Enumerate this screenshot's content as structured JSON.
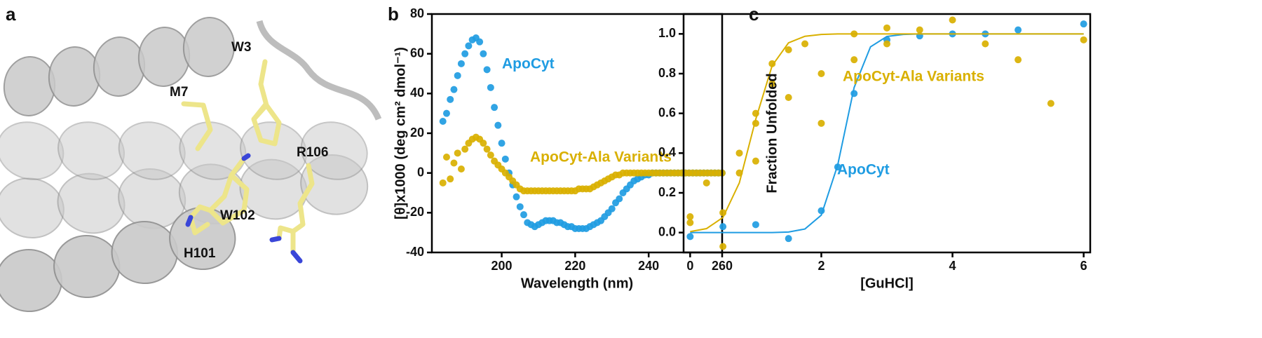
{
  "structure": {
    "panel": "a",
    "residues": [
      "W3",
      "M7",
      "R106",
      "W102",
      "H101"
    ]
  },
  "chart_data": [
    {
      "type": "scatter",
      "panel": "b",
      "x_label": "Wavelength (nm)",
      "y_label": "[θ]x1000 (deg cm² dmol⁻¹)",
      "xlim": [
        181,
        260
      ],
      "ylim": [
        -40,
        80
      ],
      "xticks": [
        200,
        220,
        240,
        260
      ],
      "yticks": [
        -40,
        -20,
        0,
        20,
        40,
        60,
        80
      ],
      "series": [
        {
          "name": "ApoCyt",
          "color": "#1f9ce2",
          "x": [
            184,
            185,
            186,
            187,
            188,
            189,
            190,
            191,
            192,
            193,
            194,
            195,
            196,
            197,
            198,
            199,
            200,
            201,
            202,
            203,
            204,
            205,
            206,
            207,
            208,
            209,
            210,
            211,
            212,
            213,
            214,
            215,
            216,
            217,
            218,
            219,
            220,
            221,
            222,
            223,
            224,
            225,
            226,
            227,
            228,
            229,
            230,
            231,
            232,
            233,
            234,
            235,
            236,
            237,
            238,
            239,
            240,
            241,
            242,
            243,
            244,
            245,
            246,
            247,
            248,
            249,
            250,
            251,
            252,
            253,
            254,
            255,
            256,
            257,
            258,
            259,
            260
          ],
          "values": [
            26,
            30,
            37,
            42,
            49,
            55,
            60,
            64,
            67,
            68,
            66,
            60,
            52,
            43,
            33,
            24,
            15,
            7,
            0,
            -6,
            -12,
            -17,
            -21,
            -25,
            -26,
            -27,
            -26,
            -25,
            -24,
            -24,
            -24,
            -25,
            -25,
            -26,
            -27,
            -27,
            -28,
            -28,
            -28,
            -28,
            -27,
            -26,
            -25,
            -24,
            -22,
            -20,
            -18,
            -15,
            -13,
            -10,
            -8,
            -6,
            -4,
            -3,
            -2,
            -1,
            -1,
            0,
            0,
            0,
            0,
            0,
            0,
            0,
            0,
            0,
            0,
            0,
            0,
            0,
            0,
            0,
            0,
            0,
            0,
            0,
            0
          ]
        },
        {
          "name": "ApoCyt-Ala Variants",
          "color": "#d9b000",
          "x": [
            184,
            185,
            186,
            187,
            188,
            189,
            190,
            191,
            192,
            193,
            194,
            195,
            196,
            197,
            198,
            199,
            200,
            201,
            202,
            203,
            204,
            205,
            206,
            207,
            208,
            209,
            210,
            211,
            212,
            213,
            214,
            215,
            216,
            217,
            218,
            219,
            220,
            221,
            222,
            223,
            224,
            225,
            226,
            227,
            228,
            229,
            230,
            231,
            232,
            233,
            234,
            235,
            236,
            237,
            238,
            239,
            240,
            241,
            242,
            243,
            244,
            245,
            246,
            247,
            248,
            249,
            250,
            251,
            252,
            253,
            254,
            255,
            256,
            257,
            258,
            259,
            260
          ],
          "values": [
            -5,
            8,
            -3,
            5,
            10,
            2,
            12,
            15,
            17,
            18,
            17,
            15,
            12,
            9,
            6,
            4,
            2,
            0,
            -2,
            -4,
            -6,
            -8,
            -9,
            -9,
            -9,
            -9,
            -9,
            -9,
            -9,
            -9,
            -9,
            -9,
            -9,
            -9,
            -9,
            -9,
            -9,
            -8,
            -8,
            -8,
            -8,
            -7,
            -6,
            -5,
            -4,
            -3,
            -2,
            -1,
            -1,
            0,
            0,
            0,
            0,
            0,
            0,
            0,
            0,
            0,
            0,
            0,
            0,
            0,
            0,
            0,
            0,
            0,
            0,
            0,
            0,
            0,
            0,
            0,
            0,
            0,
            0,
            0,
            0
          ]
        }
      ]
    },
    {
      "type": "scatter",
      "panel": "c",
      "x_label": "[GuHCl]",
      "y_label": "Fraction Unfolded",
      "xlim": [
        -0.1,
        6.1
      ],
      "ylim": [
        -0.1,
        1.1
      ],
      "xticks": [
        0,
        2,
        4,
        6
      ],
      "yticks": [
        {
          "value": 0,
          "label": "0.0"
        },
        {
          "value": 0.2,
          "label": "0.2"
        },
        {
          "value": 0.4,
          "label": "0.4"
        },
        {
          "value": 0.6,
          "label": "0.6"
        },
        {
          "value": 0.8,
          "label": "0.8"
        },
        {
          "value": 1,
          "label": "1.0"
        }
      ],
      "series": [
        {
          "name": "ApoCyt",
          "color": "#1f9ce2",
          "x": [
            0,
            0.5,
            1,
            1.5,
            2,
            2.25,
            2.5,
            3,
            3.5,
            4,
            4.5,
            5,
            6
          ],
          "values": [
            -0.02,
            0.03,
            0.04,
            -0.03,
            0.11,
            0.33,
            0.7,
            0.97,
            0.99,
            1,
            1,
            1.02,
            1.05
          ],
          "fit": {
            "x": [
              0,
              0.25,
              0.5,
              0.75,
              1,
              1.25,
              1.5,
              1.75,
              2,
              2.25,
              2.5,
              2.75,
              3,
              3.25,
              3.5,
              3.75,
              4,
              4.25,
              4.5,
              4.75,
              5,
              5.25,
              5.5,
              5.75,
              6
            ],
            "values": [
              0,
              0,
              0,
              0,
              0,
              0,
              0.003,
              0.018,
              0.088,
              0.34,
              0.73,
              0.935,
              0.987,
              0.997,
              1,
              1,
              1,
              1,
              1,
              1,
              1,
              1,
              1,
              1,
              1
            ]
          }
        },
        {
          "name": "ApoCyt-Ala Variants",
          "color": "#d9b000",
          "x": [
            0,
            0,
            0.25,
            0.5,
            0.5,
            0.75,
            0.75,
            1,
            1,
            1,
            1.25,
            1.25,
            1.5,
            1.5,
            1.75,
            2,
            2,
            2.5,
            2.5,
            3,
            3,
            3.5,
            4,
            4.5,
            5,
            5.5,
            6
          ],
          "values": [
            0.05,
            0.08,
            0.25,
            -0.07,
            0.1,
            0.3,
            0.4,
            0.55,
            0.6,
            0.36,
            0.75,
            0.85,
            0.92,
            0.68,
            0.95,
            0.8,
            0.55,
            0.87,
            1,
            0.95,
            1.03,
            1.02,
            1.07,
            0.95,
            0.87,
            0.65,
            0.97
          ],
          "fit": {
            "x": [
              0,
              0.25,
              0.5,
              0.75,
              1,
              1.25,
              1.5,
              1.75,
              2,
              2.25,
              2.5,
              2.75,
              3,
              3.25,
              3.5,
              3.75,
              4,
              4.25,
              4.5,
              4.75,
              5,
              5.25,
              5.5,
              5.75,
              6
            ],
            "values": [
              0.005,
              0.02,
              0.076,
              0.25,
              0.57,
              0.84,
              0.955,
              0.988,
              0.997,
              1,
              1,
              1,
              1,
              1,
              1,
              1,
              1,
              1,
              1,
              1,
              1,
              1,
              1,
              1,
              1
            ]
          }
        }
      ]
    }
  ]
}
